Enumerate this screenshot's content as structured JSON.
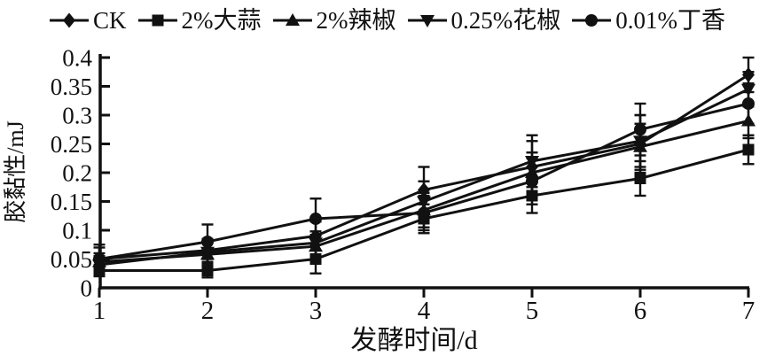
{
  "chart_data": {
    "type": "line",
    "title": "",
    "xlabel": "发酵时间/d",
    "ylabel": "胶黏性/mJ",
    "x": [
      1,
      2,
      3,
      4,
      5,
      6,
      7
    ],
    "xlim": [
      1,
      7
    ],
    "ylim": [
      0,
      0.4
    ],
    "x_ticks": [
      1,
      2,
      3,
      4,
      5,
      6,
      7
    ],
    "x_tick_labels": [
      "1",
      "2",
      "3",
      "4",
      "5",
      "6",
      "7"
    ],
    "y_ticks": [
      0,
      0.05,
      0.1,
      0.15,
      0.2,
      0.25,
      0.3,
      0.35,
      0.4
    ],
    "y_tick_labels": [
      "0",
      "0.05",
      "0.1",
      "0.15",
      "0.2",
      "0.25",
      "0.3",
      "0.35",
      "0.4"
    ],
    "grid": false,
    "legend_position": "top",
    "color": "#111111",
    "series": [
      {
        "name": "CK",
        "marker": "diamond",
        "values": [
          0.05,
          0.065,
          0.09,
          0.17,
          0.21,
          0.25,
          0.37
        ],
        "errors": [
          0.02,
          0.02,
          0.025,
          0.04,
          0.045,
          0.05,
          0.03
        ]
      },
      {
        "name": "2%大蒜",
        "marker": "square",
        "values": [
          0.03,
          0.03,
          0.05,
          0.12,
          0.16,
          0.19,
          0.24
        ],
        "errors": [
          0.01,
          0.012,
          0.025,
          0.025,
          0.03,
          0.03,
          0.025
        ]
      },
      {
        "name": "2%辣椒",
        "marker": "triangle-up",
        "values": [
          0.045,
          0.058,
          0.072,
          0.135,
          0.2,
          0.245,
          0.29
        ],
        "errors": [
          0.015,
          0.02,
          0.02,
          0.03,
          0.035,
          0.04,
          0.03
        ]
      },
      {
        "name": "0.25%花椒",
        "marker": "triangle-down",
        "values": [
          0.04,
          0.062,
          0.078,
          0.15,
          0.22,
          0.255,
          0.345
        ],
        "errors": [
          0.015,
          0.02,
          0.02,
          0.035,
          0.045,
          0.045,
          0.03
        ]
      },
      {
        "name": "0.01%丁香",
        "marker": "circle",
        "values": [
          0.05,
          0.08,
          0.12,
          0.13,
          0.185,
          0.275,
          0.32
        ],
        "errors": [
          0.025,
          0.03,
          0.035,
          0.03,
          0.04,
          0.045,
          0.035
        ]
      }
    ]
  }
}
